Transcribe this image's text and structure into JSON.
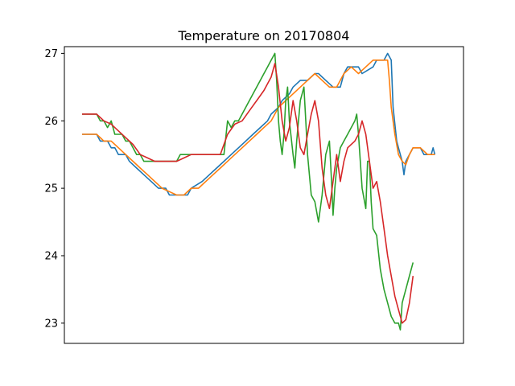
{
  "chart_data": {
    "type": "line",
    "title": "Temperature on 20170804",
    "xlabel": "",
    "ylabel": "",
    "xlim": [
      0,
      100
    ],
    "ylim": [
      22.7,
      27.1
    ],
    "yticks": [
      23,
      24,
      25,
      26,
      27
    ],
    "grid": false,
    "legend": "none",
    "series": [
      {
        "color": "#1f77b4",
        "points": [
          [
            0,
            25.8
          ],
          [
            4,
            25.8
          ],
          [
            5,
            25.7
          ],
          [
            7,
            25.7
          ],
          [
            8,
            25.6
          ],
          [
            9,
            25.6
          ],
          [
            10,
            25.5
          ],
          [
            12,
            25.5
          ],
          [
            13,
            25.4
          ],
          [
            15,
            25.3
          ],
          [
            17,
            25.2
          ],
          [
            19,
            25.1
          ],
          [
            21,
            25.0
          ],
          [
            23,
            25.0
          ],
          [
            24,
            24.9
          ],
          [
            29,
            24.9
          ],
          [
            30,
            25.0
          ],
          [
            33,
            25.1
          ],
          [
            35,
            25.2
          ],
          [
            37,
            25.3
          ],
          [
            39,
            25.4
          ],
          [
            41,
            25.5
          ],
          [
            43,
            25.6
          ],
          [
            45,
            25.7
          ],
          [
            47,
            25.8
          ],
          [
            49,
            25.9
          ],
          [
            51,
            26.0
          ],
          [
            52,
            26.1
          ],
          [
            54,
            26.2
          ],
          [
            55,
            26.3
          ],
          [
            57,
            26.4
          ],
          [
            58,
            26.5
          ],
          [
            60,
            26.6
          ],
          [
            62,
            26.6
          ],
          [
            64,
            26.7
          ],
          [
            65,
            26.7
          ],
          [
            67,
            26.6
          ],
          [
            69,
            26.5
          ],
          [
            71,
            26.5
          ],
          [
            72,
            26.7
          ],
          [
            73,
            26.8
          ],
          [
            76,
            26.8
          ],
          [
            77,
            26.7
          ],
          [
            80,
            26.8
          ],
          [
            81,
            26.9
          ],
          [
            83,
            26.9
          ],
          [
            84,
            27.0
          ],
          [
            85,
            26.9
          ],
          [
            85.5,
            26.2
          ],
          [
            86.5,
            25.7
          ],
          [
            87,
            25.6
          ],
          [
            88,
            25.4
          ],
          [
            88.5,
            25.2
          ],
          [
            89,
            25.4
          ],
          [
            90,
            25.5
          ],
          [
            91,
            25.6
          ],
          [
            93,
            25.6
          ],
          [
            94,
            25.5
          ],
          [
            96,
            25.5
          ],
          [
            96.5,
            25.6
          ],
          [
            97,
            25.5
          ]
        ]
      },
      {
        "color": "#ff7f0e",
        "points": [
          [
            0,
            25.8
          ],
          [
            4,
            25.8
          ],
          [
            6,
            25.7
          ],
          [
            8,
            25.7
          ],
          [
            10,
            25.6
          ],
          [
            12,
            25.5
          ],
          [
            14,
            25.4
          ],
          [
            16,
            25.3
          ],
          [
            18,
            25.2
          ],
          [
            20,
            25.1
          ],
          [
            22,
            25.0
          ],
          [
            24,
            24.95
          ],
          [
            26,
            24.9
          ],
          [
            28,
            24.9
          ],
          [
            30,
            25.0
          ],
          [
            32,
            25.0
          ],
          [
            34,
            25.1
          ],
          [
            36,
            25.2
          ],
          [
            38,
            25.3
          ],
          [
            40,
            25.4
          ],
          [
            42,
            25.5
          ],
          [
            44,
            25.6
          ],
          [
            46,
            25.7
          ],
          [
            48,
            25.8
          ],
          [
            50,
            25.9
          ],
          [
            52,
            26.0
          ],
          [
            54,
            26.2
          ],
          [
            56,
            26.3
          ],
          [
            58,
            26.4
          ],
          [
            60,
            26.5
          ],
          [
            62,
            26.6
          ],
          [
            64,
            26.7
          ],
          [
            66,
            26.6
          ],
          [
            68,
            26.5
          ],
          [
            70,
            26.5
          ],
          [
            72,
            26.7
          ],
          [
            74,
            26.8
          ],
          [
            76,
            26.7
          ],
          [
            78,
            26.8
          ],
          [
            80,
            26.9
          ],
          [
            82,
            26.9
          ],
          [
            83,
            26.9
          ],
          [
            84,
            26.9
          ],
          [
            84.5,
            26.6
          ],
          [
            85,
            26.2
          ],
          [
            86,
            25.8
          ],
          [
            87,
            25.5
          ],
          [
            88,
            25.4
          ],
          [
            89,
            25.35
          ],
          [
            90,
            25.5
          ],
          [
            91,
            25.6
          ],
          [
            93,
            25.6
          ],
          [
            95,
            25.5
          ],
          [
            97,
            25.5
          ]
        ]
      },
      {
        "color": "#2ca02c",
        "points": [
          [
            0,
            26.1
          ],
          [
            4,
            26.1
          ],
          [
            5,
            26.0
          ],
          [
            6,
            26.0
          ],
          [
            7,
            25.9
          ],
          [
            8,
            26.0
          ],
          [
            9,
            25.8
          ],
          [
            11,
            25.8
          ],
          [
            12,
            25.7
          ],
          [
            13,
            25.7
          ],
          [
            14,
            25.6
          ],
          [
            15,
            25.5
          ],
          [
            16,
            25.5
          ],
          [
            17,
            25.4
          ],
          [
            26,
            25.4
          ],
          [
            27,
            25.5
          ],
          [
            28,
            25.5
          ],
          [
            29,
            25.5
          ],
          [
            31,
            25.5
          ],
          [
            32,
            25.5
          ],
          [
            39,
            25.5
          ],
          [
            40,
            26.0
          ],
          [
            41,
            25.9
          ],
          [
            42,
            26.0
          ],
          [
            43,
            26.0
          ],
          [
            44,
            26.1
          ],
          [
            45,
            26.2
          ],
          [
            46,
            26.3
          ],
          [
            47,
            26.4
          ],
          [
            48,
            26.5
          ],
          [
            49,
            26.6
          ],
          [
            50,
            26.7
          ],
          [
            51,
            26.8
          ],
          [
            52,
            26.9
          ],
          [
            53,
            27.0
          ],
          [
            53.5,
            26.6
          ],
          [
            54,
            26.0
          ],
          [
            54.5,
            25.7
          ],
          [
            55,
            25.5
          ],
          [
            55.5,
            25.8
          ],
          [
            56,
            26.3
          ],
          [
            56.5,
            26.5
          ],
          [
            57,
            26.0
          ],
          [
            58,
            25.5
          ],
          [
            58.5,
            25.3
          ],
          [
            59,
            25.7
          ],
          [
            60,
            26.3
          ],
          [
            61,
            26.5
          ],
          [
            61.5,
            26.0
          ],
          [
            62,
            25.5
          ],
          [
            62.5,
            25.2
          ],
          [
            63,
            24.9
          ],
          [
            64,
            24.8
          ],
          [
            65,
            24.5
          ],
          [
            66,
            24.9
          ],
          [
            67,
            25.5
          ],
          [
            68,
            25.7
          ],
          [
            68.5,
            25.2
          ],
          [
            69,
            24.6
          ],
          [
            69.5,
            25.0
          ],
          [
            70,
            25.3
          ],
          [
            71,
            25.6
          ],
          [
            72,
            25.7
          ],
          [
            73,
            25.8
          ],
          [
            74,
            25.9
          ],
          [
            75,
            26.0
          ],
          [
            75.5,
            26.1
          ],
          [
            76,
            25.8
          ],
          [
            77,
            25.0
          ],
          [
            78,
            24.7
          ],
          [
            78.5,
            25.4
          ],
          [
            79,
            25.4
          ],
          [
            79.5,
            24.8
          ],
          [
            80,
            24.4
          ],
          [
            81,
            24.3
          ],
          [
            82,
            23.8
          ],
          [
            83,
            23.5
          ],
          [
            84,
            23.3
          ],
          [
            85,
            23.1
          ],
          [
            86,
            23.0
          ],
          [
            87,
            23.0
          ],
          [
            87.5,
            22.9
          ],
          [
            88,
            23.3
          ],
          [
            89,
            23.5
          ],
          [
            90,
            23.7
          ],
          [
            91,
            23.9
          ]
        ]
      },
      {
        "color": "#d62728",
        "points": [
          [
            0,
            26.1
          ],
          [
            4,
            26.1
          ],
          [
            6,
            26.0
          ],
          [
            8,
            25.95
          ],
          [
            10,
            25.85
          ],
          [
            12,
            25.75
          ],
          [
            14,
            25.65
          ],
          [
            16,
            25.5
          ],
          [
            18,
            25.45
          ],
          [
            20,
            25.4
          ],
          [
            26,
            25.4
          ],
          [
            28,
            25.45
          ],
          [
            30,
            25.5
          ],
          [
            32,
            25.5
          ],
          [
            38,
            25.5
          ],
          [
            40,
            25.8
          ],
          [
            42,
            25.95
          ],
          [
            44,
            26.0
          ],
          [
            46,
            26.15
          ],
          [
            48,
            26.3
          ],
          [
            50,
            26.45
          ],
          [
            52,
            26.65
          ],
          [
            53,
            26.85
          ],
          [
            54,
            26.5
          ],
          [
            55,
            26.0
          ],
          [
            56,
            25.7
          ],
          [
            57,
            25.9
          ],
          [
            58,
            26.3
          ],
          [
            59,
            26.0
          ],
          [
            60,
            25.6
          ],
          [
            61,
            25.5
          ],
          [
            62,
            25.8
          ],
          [
            63,
            26.1
          ],
          [
            64,
            26.3
          ],
          [
            65,
            26.0
          ],
          [
            66,
            25.3
          ],
          [
            67,
            24.9
          ],
          [
            68,
            24.7
          ],
          [
            69,
            25.1
          ],
          [
            70,
            25.5
          ],
          [
            70.5,
            25.3
          ],
          [
            71,
            25.1
          ],
          [
            72,
            25.4
          ],
          [
            73,
            25.6
          ],
          [
            74,
            25.65
          ],
          [
            75,
            25.7
          ],
          [
            76,
            25.8
          ],
          [
            77,
            26.0
          ],
          [
            78,
            25.8
          ],
          [
            79,
            25.4
          ],
          [
            80,
            25.0
          ],
          [
            81,
            25.1
          ],
          [
            82,
            24.8
          ],
          [
            83,
            24.4
          ],
          [
            84,
            24.0
          ],
          [
            85,
            23.7
          ],
          [
            86,
            23.4
          ],
          [
            87,
            23.2
          ],
          [
            88,
            23.0
          ],
          [
            89,
            23.05
          ],
          [
            90,
            23.3
          ],
          [
            91,
            23.7
          ]
        ]
      }
    ]
  }
}
